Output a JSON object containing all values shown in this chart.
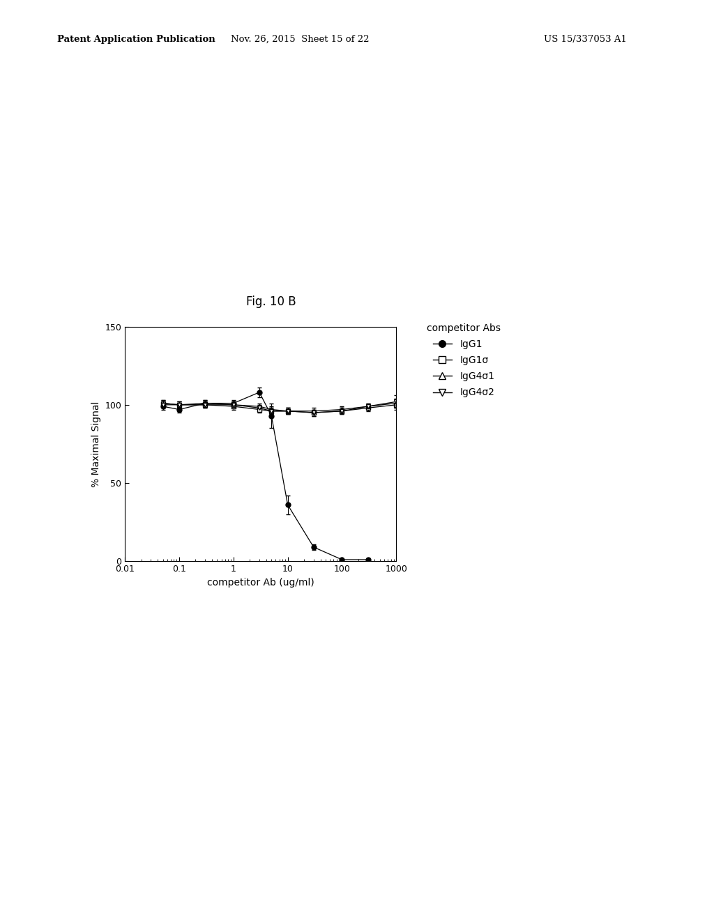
{
  "fig_label": "Fig. 10 B",
  "patent_line1": "Patent Application Publication",
  "patent_line2": "Nov. 26, 2015  Sheet 15 of 22",
  "patent_line3": "US 15/337053 A1",
  "xlabel": "competitor Ab (ug/ml)",
  "ylabel": "% Maximal Signal",
  "legend_title": "competitor Abs",
  "ylim": [
    0,
    150
  ],
  "yticks": [
    0,
    50,
    100,
    150
  ],
  "background_color": "#ffffff",
  "series": [
    {
      "label": "IgG1",
      "marker": "o",
      "fillstyle": "full",
      "color": "#000000",
      "x": [
        0.05,
        0.1,
        0.3,
        1.0,
        3.0,
        5.0,
        10.0,
        30.0,
        100.0,
        300.0
      ],
      "y": [
        99,
        97,
        101,
        101,
        108,
        93,
        36,
        9,
        1,
        1
      ],
      "yerr": [
        2,
        2,
        2,
        2,
        3,
        8,
        6,
        2,
        1,
        0.5
      ]
    },
    {
      "label": "IgG1σ",
      "marker": "s",
      "fillstyle": "none",
      "color": "#000000",
      "x": [
        0.05,
        0.1,
        0.3,
        1.0,
        3.0,
        5.0,
        10.0,
        30.0,
        100.0,
        300.0,
        1000.0
      ],
      "y": [
        101,
        100,
        100,
        99,
        97,
        96,
        96,
        95,
        96,
        98,
        100
      ],
      "yerr": [
        2,
        2,
        2,
        2,
        2,
        2,
        2,
        2,
        2,
        2,
        3
      ]
    },
    {
      "label": "IgG4σ1",
      "marker": "^",
      "fillstyle": "none",
      "color": "#000000",
      "x": [
        0.05,
        0.1,
        0.3,
        1.0,
        3.0,
        5.0,
        10.0,
        30.0,
        100.0,
        300.0,
        1000.0
      ],
      "y": [
        101,
        100,
        101,
        100,
        99,
        97,
        96,
        96,
        97,
        99,
        101
      ],
      "yerr": [
        2,
        2,
        2,
        2,
        2,
        2,
        2,
        2,
        2,
        2,
        3
      ]
    },
    {
      "label": "IgG4σ2",
      "marker": "v",
      "fillstyle": "none",
      "color": "#000000",
      "x": [
        0.05,
        0.1,
        0.3,
        1.0,
        3.0,
        5.0,
        10.0,
        30.0,
        100.0,
        300.0,
        1000.0
      ],
      "y": [
        100,
        100,
        100,
        100,
        98,
        96,
        96,
        95,
        96,
        99,
        102
      ],
      "yerr": [
        2,
        2,
        2,
        2,
        2,
        2,
        2,
        2,
        2,
        2,
        4
      ]
    }
  ]
}
